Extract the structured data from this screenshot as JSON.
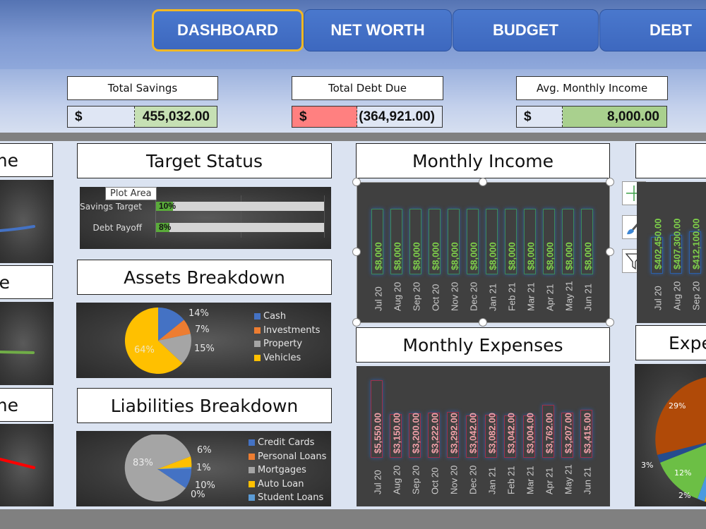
{
  "nav": {
    "tabs": [
      {
        "label": "DASHBOARD",
        "active": true
      },
      {
        "label": "NET WORTH",
        "active": false
      },
      {
        "label": "BUDGET",
        "active": false
      },
      {
        "label": "DEBT",
        "active": false
      }
    ]
  },
  "kpis": [
    {
      "label": "Total Savings",
      "currency": "$",
      "value": "455,032.00",
      "color": "#c6e0b4"
    },
    {
      "label": "Total Debt Due",
      "currency": "$",
      "value": "(364,921.00)",
      "color": "#ff8080"
    },
    {
      "label": "Avg. Monthly Income",
      "currency": "$",
      "value": "8,000.00",
      "color": "#a9d08e"
    }
  ],
  "left_partial": {
    "titles": [
      "me",
      "e",
      "me"
    ],
    "line_colors": [
      "#4472c4",
      "#70ad47",
      "#ff0000"
    ]
  },
  "target_status": {
    "title": "Target Status",
    "tooltip": "Plot Area",
    "rows": [
      {
        "label": "Savings Target",
        "pct": "10%",
        "value": 10
      },
      {
        "label": "Debt Payoff",
        "pct": "8%",
        "value": 8
      }
    ]
  },
  "assets": {
    "title": "Assets Breakdown",
    "legend": [
      {
        "label": "Cash",
        "color": "#4472c4"
      },
      {
        "label": "Investments",
        "color": "#ed7d31"
      },
      {
        "label": "Property",
        "color": "#a5a5a5"
      },
      {
        "label": "Vehicles",
        "color": "#ffc000"
      }
    ],
    "labels": [
      "14%",
      "7%",
      "15%",
      "64%"
    ]
  },
  "liabilities": {
    "title": "Liabilities Breakdown",
    "legend": [
      {
        "label": "Credit Cards",
        "color": "#4472c4"
      },
      {
        "label": "Personal Loans",
        "color": "#ed7d31"
      },
      {
        "label": "Mortgages",
        "color": "#a5a5a5"
      },
      {
        "label": "Auto Loan",
        "color": "#ffc000"
      },
      {
        "label": "Student Loans",
        "color": "#5b9bd5"
      }
    ],
    "labels": [
      "83%",
      "6%",
      "1%",
      "10%",
      "0%"
    ]
  },
  "monthly_income": {
    "title": "Monthly Income",
    "months": [
      "Jul 20",
      "Aug 20",
      "Sep 20",
      "Oct 20",
      "Nov 20",
      "Dec 20",
      "Jan 21",
      "Feb 21",
      "Mar 21",
      "Apr 21",
      "May 21",
      "Jun 21"
    ],
    "labels": [
      "$8,000",
      "$8,000",
      "$8,000",
      "$8,000",
      "$8,000",
      "$8,000",
      "$8,000",
      "$8,000",
      "$8,000",
      "$8,000",
      "$8,000",
      "$8,000"
    ]
  },
  "monthly_expenses": {
    "title": "Monthly Expenses",
    "months": [
      "Jul 20",
      "Aug 20",
      "Sep 20",
      "Oct 20",
      "Nov 20",
      "Dec 20",
      "Jan 21",
      "Feb 21",
      "Mar 21",
      "Apr 21",
      "May 21",
      "Jun 21"
    ],
    "labels": [
      "$5,550.00",
      "$3,150.00",
      "$3,200.00",
      "$3,222.00",
      "$3,292.00",
      "$3,042.00",
      "$3,082.00",
      "$3,042.00",
      "$3,004.00",
      "$3,762.00",
      "$3,207.00",
      "$3,415.00"
    ]
  },
  "net_worth_partial": {
    "months": [
      "Jul 20",
      "Aug 20",
      "Sep 20"
    ],
    "labels": [
      "$402,450.00",
      "$407,300.00",
      "$412,100.00"
    ]
  },
  "expenses_pie_partial": {
    "title": "Expe",
    "labels": [
      "29%",
      "3%",
      "12%",
      "2%"
    ]
  },
  "chart_tools": [
    "add-chart-element",
    "chart-styles",
    "chart-filters"
  ],
  "chart_data": [
    {
      "type": "bar",
      "title": "Target Status",
      "categories": [
        "Savings Target",
        "Debt Payoff"
      ],
      "values": [
        10,
        8
      ],
      "xlim": [
        0,
        100
      ]
    },
    {
      "type": "pie",
      "title": "Assets Breakdown",
      "categories": [
        "Cash",
        "Investments",
        "Property",
        "Vehicles"
      ],
      "values": [
        14,
        7,
        15,
        64
      ]
    },
    {
      "type": "pie",
      "title": "Liabilities Breakdown",
      "categories": [
        "Credit Cards",
        "Personal Loans",
        "Mortgages",
        "Auto Loan",
        "Student Loans"
      ],
      "values": [
        10,
        0,
        83,
        6,
        1
      ]
    },
    {
      "type": "bar",
      "title": "Monthly Income",
      "categories": [
        "Jul 20",
        "Aug 20",
        "Sep 20",
        "Oct 20",
        "Nov 20",
        "Dec 20",
        "Jan 21",
        "Feb 21",
        "Mar 21",
        "Apr 21",
        "May 21",
        "Jun 21"
      ],
      "values": [
        8000,
        8000,
        8000,
        8000,
        8000,
        8000,
        8000,
        8000,
        8000,
        8000,
        8000,
        8000
      ]
    },
    {
      "type": "bar",
      "title": "Monthly Expenses",
      "categories": [
        "Jul 20",
        "Aug 20",
        "Sep 20",
        "Oct 20",
        "Nov 20",
        "Dec 20",
        "Jan 21",
        "Feb 21",
        "Mar 21",
        "Apr 21",
        "May 21",
        "Jun 21"
      ],
      "values": [
        5550,
        3150,
        3200,
        3222,
        3292,
        3042,
        3082,
        3042,
        3004,
        3762,
        3207,
        3415
      ]
    }
  ]
}
